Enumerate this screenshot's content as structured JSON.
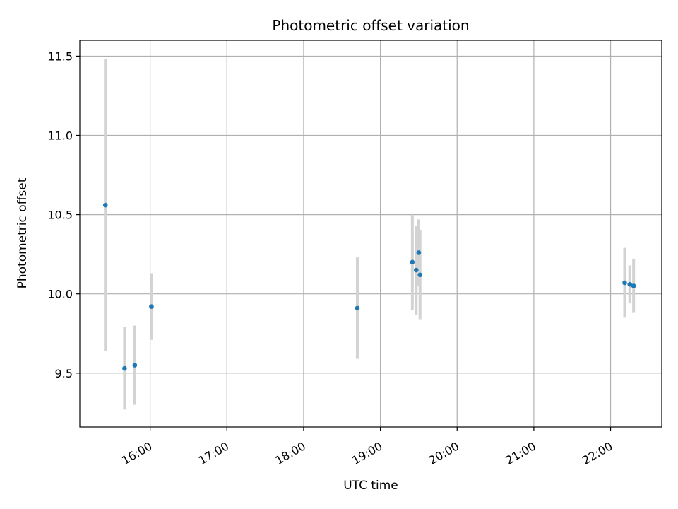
{
  "chart_data": {
    "type": "scatter",
    "title": "Photometric offset variation",
    "xlabel": "UTC time",
    "ylabel": "Photometric offset",
    "x_ticks": [
      "16:00",
      "17:00",
      "18:00",
      "19:00",
      "20:00",
      "21:00",
      "22:00"
    ],
    "x_tick_hours": [
      16,
      17,
      18,
      19,
      20,
      21,
      22
    ],
    "y_ticks": [
      "9.5",
      "10.0",
      "10.5",
      "11.0",
      "11.5"
    ],
    "y_tick_values": [
      9.5,
      10.0,
      10.5,
      11.0,
      11.5
    ],
    "xlim": [
      "15:05",
      "22:40"
    ],
    "ylim": [
      9.16,
      11.6
    ],
    "grid": true,
    "point_color": "#1f77b4",
    "errorbar_color": "#d3d3d3",
    "series": [
      {
        "points": [
          {
            "time": "15:25",
            "value": 10.56,
            "err": 0.92
          },
          {
            "time": "15:40",
            "value": 9.53,
            "err": 0.26
          },
          {
            "time": "15:48",
            "value": 9.55,
            "err": 0.25
          },
          {
            "time": "16:01",
            "value": 9.92,
            "err": 0.21
          },
          {
            "time": "18:42",
            "value": 9.91,
            "err": 0.32
          },
          {
            "time": "19:25",
            "value": 10.2,
            "err": 0.3
          },
          {
            "time": "19:28",
            "value": 10.15,
            "err": 0.28
          },
          {
            "time": "19:30",
            "value": 10.26,
            "err": 0.21
          },
          {
            "time": "19:31",
            "value": 10.12,
            "err": 0.28
          },
          {
            "time": "22:11",
            "value": 10.07,
            "err": 0.22
          },
          {
            "time": "22:15",
            "value": 10.06,
            "err": 0.12
          },
          {
            "time": "22:18",
            "value": 10.05,
            "err": 0.17
          }
        ]
      }
    ]
  }
}
